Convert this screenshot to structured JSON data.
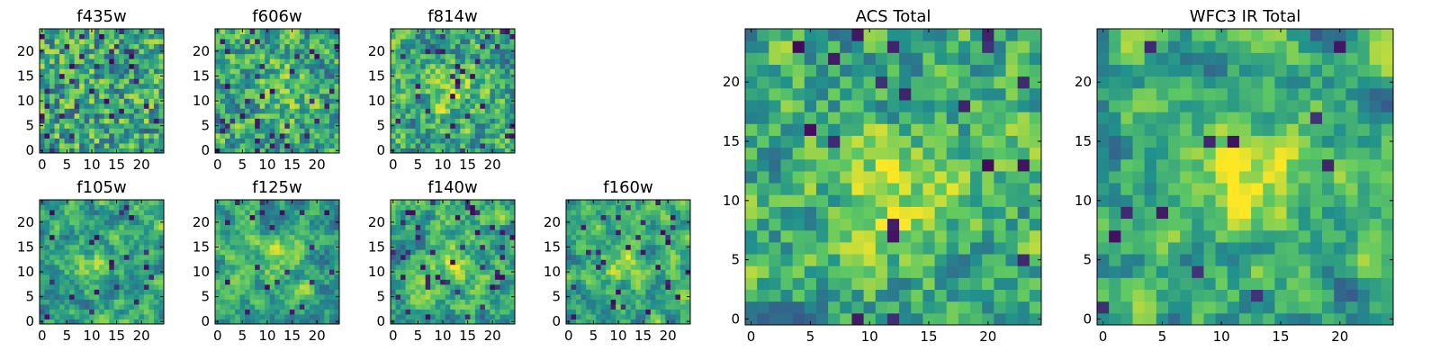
{
  "chart_data": [
    {
      "type": "heatmap",
      "title": "f435w",
      "x_ticks": [
        "0",
        "5",
        "10",
        "15",
        "20"
      ],
      "y_ticks": [
        "0",
        "5",
        "10",
        "15",
        "20"
      ],
      "xlim": [
        0,
        25
      ],
      "ylim": [
        0,
        25
      ],
      "grid": false,
      "smooth": 0.0,
      "center": [
        12,
        12
      ],
      "center_strength": 0.0,
      "seed": 11,
      "dark_fraction": 0.06
    },
    {
      "type": "heatmap",
      "title": "f606w",
      "x_ticks": [
        "0",
        "5",
        "10",
        "15",
        "20"
      ],
      "y_ticks": [
        "0",
        "5",
        "10",
        "15",
        "20"
      ],
      "xlim": [
        0,
        25
      ],
      "ylim": [
        0,
        25
      ],
      "grid": false,
      "smooth": 0.15,
      "center": [
        12,
        12
      ],
      "center_strength": 0.35,
      "seed": 23,
      "dark_fraction": 0.05
    },
    {
      "type": "heatmap",
      "title": "f814w",
      "x_ticks": [
        "0",
        "5",
        "10",
        "15",
        "20"
      ],
      "y_ticks": [
        "0",
        "5",
        "10",
        "15",
        "20"
      ],
      "xlim": [
        0,
        25
      ],
      "ylim": [
        0,
        25
      ],
      "grid": false,
      "smooth": 0.15,
      "center": [
        12,
        12
      ],
      "center_strength": 0.4,
      "seed": 37,
      "dark_fraction": 0.05
    },
    {
      "type": "heatmap",
      "title": "f105w",
      "x_ticks": [
        "0",
        "5",
        "10",
        "15",
        "20"
      ],
      "y_ticks": [
        "0",
        "5",
        "10",
        "15",
        "20"
      ],
      "xlim": [
        0,
        25
      ],
      "ylim": [
        0,
        25
      ],
      "grid": false,
      "smooth": 0.55,
      "center": [
        11,
        12
      ],
      "center_strength": 0.35,
      "seed": 41,
      "dark_fraction": 0.04
    },
    {
      "type": "heatmap",
      "title": "f125w",
      "x_ticks": [
        "0",
        "5",
        "10",
        "15",
        "20"
      ],
      "y_ticks": [
        "0",
        "5",
        "10",
        "15",
        "20"
      ],
      "xlim": [
        0,
        25
      ],
      "ylim": [
        0,
        25
      ],
      "grid": false,
      "smooth": 0.55,
      "center": [
        13,
        13
      ],
      "center_strength": 0.3,
      "seed": 53,
      "dark_fraction": 0.04
    },
    {
      "type": "heatmap",
      "title": "f140w",
      "x_ticks": [
        "0",
        "5",
        "10",
        "15",
        "20"
      ],
      "y_ticks": [
        "0",
        "5",
        "10",
        "15",
        "20"
      ],
      "xlim": [
        0,
        25
      ],
      "ylim": [
        0,
        25
      ],
      "grid": false,
      "smooth": 0.55,
      "center": [
        11,
        12
      ],
      "center_strength": 0.35,
      "seed": 67,
      "dark_fraction": 0.05
    },
    {
      "type": "heatmap",
      "title": "f160w",
      "x_ticks": [
        "0",
        "5",
        "10",
        "15",
        "20"
      ],
      "y_ticks": [
        "0",
        "5",
        "10",
        "15",
        "20"
      ],
      "xlim": [
        0,
        25
      ],
      "ylim": [
        0,
        25
      ],
      "grid": false,
      "smooth": 0.55,
      "center": [
        11,
        12
      ],
      "center_strength": 0.4,
      "seed": 79,
      "dark_fraction": 0.06
    },
    {
      "type": "heatmap",
      "title": "ACS Total",
      "x_ticks": [
        "0",
        "5",
        "10",
        "15",
        "20"
      ],
      "y_ticks": [
        "0",
        "5",
        "10",
        "15",
        "20"
      ],
      "xlim": [
        0,
        25
      ],
      "ylim": [
        0,
        25
      ],
      "grid": false,
      "smooth": 0.2,
      "center": [
        12,
        11
      ],
      "center_strength": 0.45,
      "seed": 97,
      "dark_fraction": 0.035
    },
    {
      "type": "heatmap",
      "title": "WFC3 IR Total",
      "x_ticks": [
        "0",
        "5",
        "10",
        "15",
        "20"
      ],
      "y_ticks": [
        "0",
        "5",
        "10",
        "15",
        "20"
      ],
      "xlim": [
        0,
        25
      ],
      "ylim": [
        0,
        25
      ],
      "grid": false,
      "smooth": 0.6,
      "center": [
        12,
        12
      ],
      "center_strength": 0.55,
      "seed": 113,
      "dark_fraction": 0.025
    }
  ],
  "colormap": [
    "#440154",
    "#3b528b",
    "#21918c",
    "#5ec962",
    "#fde725"
  ]
}
